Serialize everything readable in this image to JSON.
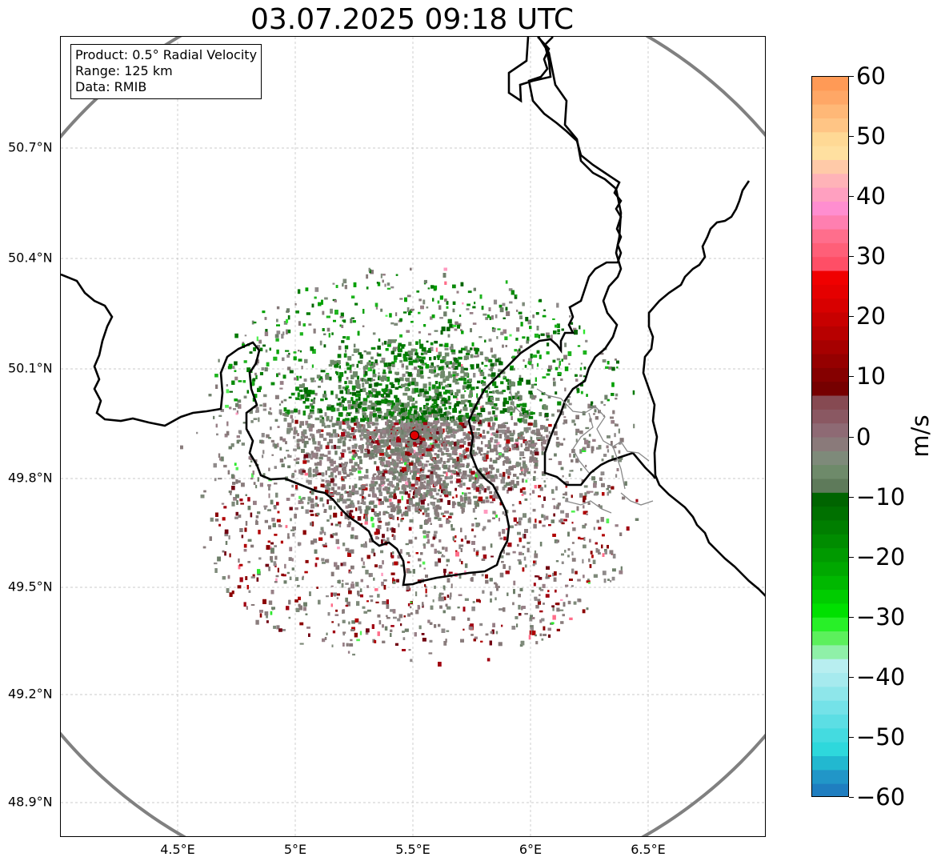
{
  "title": "03.07.2025 09:18 UTC",
  "info": {
    "product": "Product: 0.5° Radial Velocity",
    "range": "Range: 125 km",
    "data": "Data: RMIB"
  },
  "y_axis": [
    "50.7°N",
    "50.4°N",
    "50.1°N",
    "49.8°N",
    "49.5°N",
    "49.2°N",
    "48.9°N"
  ],
  "x_axis": [
    "4.5°E",
    "5°E",
    "5.5°E",
    "6°E",
    "6.5°E"
  ],
  "colorbar": {
    "unit": "m/s",
    "ticks": [
      "60",
      "50",
      "40",
      "30",
      "20",
      "10",
      "0",
      "−10",
      "−20",
      "−30",
      "−40",
      "−50",
      "−60"
    ],
    "min": -60,
    "max": 60
  },
  "radar_site": {
    "lon": 5.505,
    "lat": 49.914
  },
  "colors": {
    "range_ring": "#808080",
    "borders": "#000000",
    "site_marker": "#e00000"
  }
}
